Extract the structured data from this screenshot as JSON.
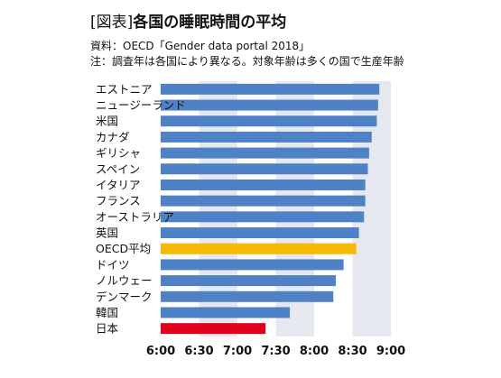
{
  "header": {
    "title_tag": "[図表]",
    "title": "各国の睡眠時間の平均",
    "source": "資料：OECD「Gender data portal 2018」",
    "note": "注：調査年は各国により異なる。対象年齢は多くの国で生産年齢"
  },
  "colors": {
    "bar": "#4f81c7",
    "oecd_average": "#f6b800",
    "japan": "#e0001b",
    "band": "#e5e9ef"
  },
  "chart_data": {
    "type": "bar",
    "orientation": "horizontal",
    "title": "各国の睡眠時間の平均",
    "xlabel": "",
    "ylabel": "",
    "x_ticks": [
      "6:00",
      "6:30",
      "7:00",
      "7:30",
      "8:00",
      "8:30",
      "9:00"
    ],
    "xlim_minutes": [
      360,
      540
    ],
    "grid": "alternating vertical bands",
    "categories": [
      "エストニア",
      "ニュージーランド",
      "米国",
      "カナダ",
      "ギリシャ",
      "スペイン",
      "イタリア",
      "フランス",
      "オーストラリア",
      "英国",
      "OECD平均",
      "ドイツ",
      "ノルウェー",
      "デンマーク",
      "韓国",
      "日本"
    ],
    "values_minutes": [
      531,
      530,
      529,
      525,
      523,
      522,
      520,
      520,
      519,
      515,
      513,
      503,
      497,
      495,
      461,
      442
    ],
    "highlight": {
      "OECD平均": "oecd_average",
      "日本": "japan"
    }
  }
}
